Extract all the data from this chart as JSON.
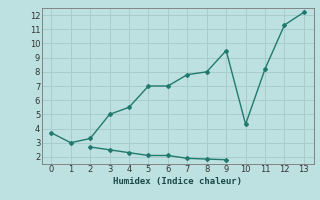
{
  "line1_x": [
    0,
    1,
    2,
    3,
    4,
    5,
    6,
    7,
    8,
    9,
    10,
    11,
    12,
    13
  ],
  "line1_y": [
    3.7,
    3.0,
    3.3,
    5.0,
    5.5,
    7.0,
    7.0,
    7.8,
    8.0,
    9.5,
    4.3,
    8.2,
    11.3,
    12.2
  ],
  "line2_x": [
    2,
    3,
    4,
    5,
    6,
    7,
    8,
    9
  ],
  "line2_y": [
    2.7,
    2.5,
    2.3,
    2.1,
    2.1,
    1.9,
    1.85,
    1.8
  ],
  "line_color": "#217a6e",
  "bg_color": "#bde0e0",
  "grid_color": "#a8cccc",
  "xlabel": "Humidex (Indice chaleur)",
  "xlim": [
    -0.5,
    13.5
  ],
  "ylim": [
    1.5,
    12.5
  ],
  "yticks": [
    2,
    3,
    4,
    5,
    6,
    7,
    8,
    9,
    10,
    11,
    12
  ],
  "xticks": [
    0,
    1,
    2,
    3,
    4,
    5,
    6,
    7,
    8,
    9,
    10,
    11,
    12,
    13
  ],
  "marker": "D",
  "markersize": 2.0,
  "linewidth": 1.0
}
